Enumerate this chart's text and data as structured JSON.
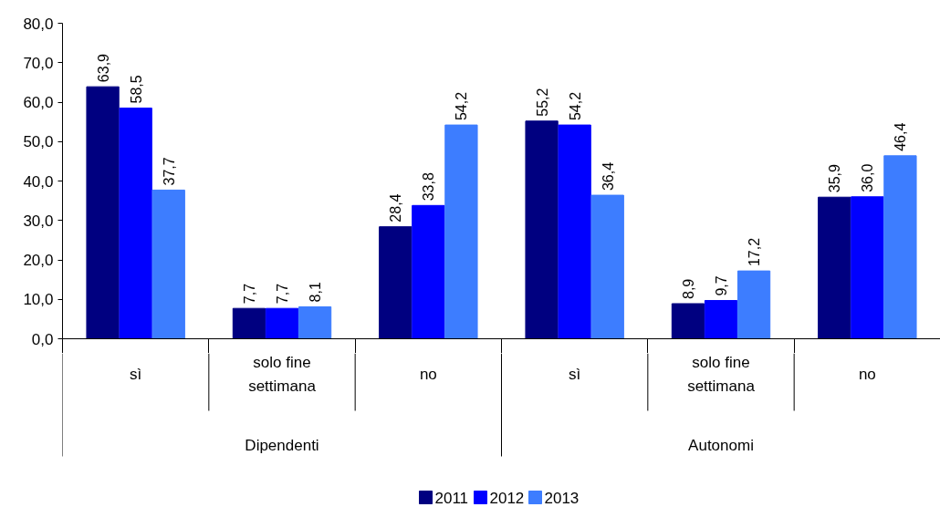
{
  "chart_data": {
    "type": "bar",
    "categories": [
      "sì",
      "solo fine settimana",
      "no",
      "sì",
      "solo fine settimana",
      "no"
    ],
    "annotations": [
      "Dipendenti",
      "Autonomi"
    ],
    "series": [
      {
        "name": "2011",
        "color": "#000080",
        "values": [
          63.9,
          7.7,
          28.4,
          55.2,
          8.9,
          35.9
        ],
        "value_labels": [
          "63,9",
          "7,7",
          "28,4",
          "55,2",
          "8,9",
          "35,9"
        ]
      },
      {
        "name": "2012",
        "color": "#0000ff",
        "values": [
          58.5,
          7.7,
          33.8,
          54.2,
          9.7,
          36.0
        ],
        "value_labels": [
          "58,5",
          "7,7",
          "33,8",
          "54,2",
          "9,7",
          "36,0"
        ]
      },
      {
        "name": "2013",
        "color": "#3d7dff",
        "values": [
          37.7,
          8.1,
          54.2,
          36.4,
          17.2,
          46.4
        ],
        "value_labels": [
          "37,7",
          "8,1",
          "54,2",
          "36,4",
          "17,2",
          "46,4"
        ]
      }
    ],
    "ylim": [
      0,
      80
    ],
    "yticks": [
      {
        "value": 0,
        "label": "0,0"
      },
      {
        "value": 10,
        "label": "10,0"
      },
      {
        "value": 20,
        "label": "20,0"
      },
      {
        "value": 30,
        "label": "30,0"
      },
      {
        "value": 40,
        "label": "40,0"
      },
      {
        "value": 50,
        "label": "50,0"
      },
      {
        "value": 60,
        "label": "60,0"
      },
      {
        "value": 70,
        "label": "70,0"
      },
      {
        "value": 80,
        "label": "80,0"
      }
    ],
    "tick_labels": "y",
    "grid": false,
    "legend": "bottom"
  }
}
